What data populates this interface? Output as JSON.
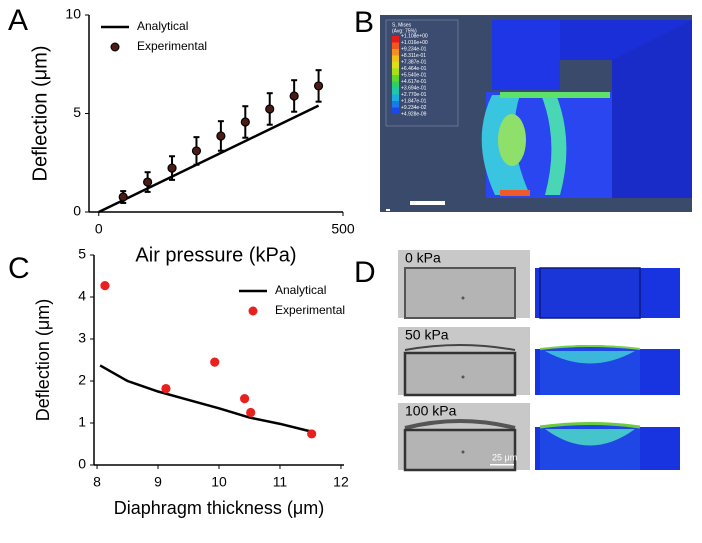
{
  "panel_labels": [
    "A",
    "B",
    "C",
    "D"
  ],
  "chart_data": [
    {
      "type": "line",
      "xlabel": "Air pressure (kPa)",
      "ylabel": "Deflection (μm)",
      "xlim": [
        -20,
        500
      ],
      "ylim": [
        0,
        10
      ],
      "xticks": [
        0,
        500
      ],
      "yticks": [
        0,
        5,
        10
      ],
      "grid": false,
      "legend": "upper left",
      "series": [
        {
          "name": "Analytical",
          "color": "#000000",
          "style": "line",
          "x": [
            0,
            450
          ],
          "values": [
            0,
            5.4
          ]
        },
        {
          "name": "Experimental",
          "color": "#000000",
          "style": "markers",
          "x": [
            50,
            100,
            150,
            200,
            250,
            300,
            350,
            400,
            450
          ],
          "values": [
            0.76,
            1.52,
            2.23,
            3.1,
            3.86,
            4.57,
            5.23,
            5.89,
            6.4
          ],
          "errors": [
            0.3,
            0.5,
            0.6,
            0.7,
            0.75,
            0.8,
            0.8,
            0.8,
            0.8
          ]
        }
      ]
    },
    {
      "type": "line",
      "xlabel": "Diaphragm thickness (μm)",
      "ylabel": "Deflection (μm)",
      "xlim": [
        7.95,
        12.05
      ],
      "ylim": [
        0,
        5
      ],
      "xticks": [
        8,
        9,
        10,
        11,
        12
      ],
      "yticks": [
        0,
        1,
        2,
        3,
        4,
        5
      ],
      "grid": false,
      "legend": "upper right",
      "series": [
        {
          "name": "Analytical",
          "color": "#000000",
          "style": "line",
          "x": [
            8.05,
            8.5,
            9,
            9.5,
            10,
            10.5,
            11,
            11.5
          ],
          "values": [
            2.37,
            2.0,
            1.75,
            1.55,
            1.35,
            1.13,
            0.98,
            0.8
          ]
        },
        {
          "name": "Experimental",
          "color": "#e8201e",
          "style": "markers",
          "x": [
            8.13,
            9.13,
            9.93,
            10.42,
            10.52,
            11.52
          ],
          "values": [
            4.27,
            1.82,
            2.45,
            1.58,
            1.25,
            0.74
          ]
        }
      ]
    }
  ],
  "fem": {
    "legend_title": "S, Mises",
    "legend_subtitle": "(Avg: 75%)",
    "legend_values": [
      "+1.108e+00",
      "+1.016e+00",
      "+9.234e-01",
      "+8.311e-01",
      "+7.387e-01",
      "+6.464e-01",
      "+5.540e-01",
      "+4.617e-01",
      "+3.694e-01",
      "+2.770e-01",
      "+1.847e-01",
      "+9.234e-02",
      "+4.928e-09"
    ]
  },
  "micrographs": {
    "labels": [
      "0 kPa",
      "50 kPa",
      "100 kPa"
    ],
    "scale_bar": "25 μm"
  }
}
